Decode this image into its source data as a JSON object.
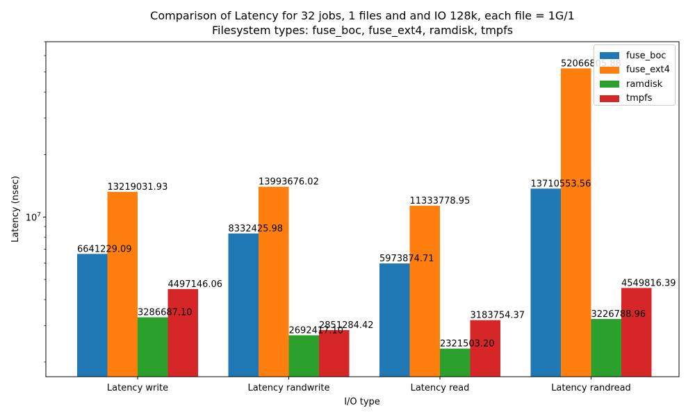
{
  "chart_data": {
    "type": "bar",
    "title": "Comparison of Latency for 32 jobs, 1 files and  and IO 128k, each file = 1G/1",
    "subtitle": "Filesystem types: fuse_boc, fuse_ext4, ramdisk, tmpfs",
    "xlabel": "I/O type",
    "ylabel": "Latency (nsec)",
    "yscale": "log",
    "ylim": [
      1700000,
      70000000
    ],
    "yticks": [
      {
        "value": 10000000,
        "base": "10",
        "exp": "7"
      }
    ],
    "categories": [
      "Latency write",
      "Latency randwrite",
      "Latency read",
      "Latency randread"
    ],
    "series": [
      {
        "name": "fuse_boc",
        "color": "#1f77b4",
        "values": [
          6641229.09,
          8332425.98,
          5973874.71,
          13710553.56
        ],
        "labels": [
          "6641229.09",
          "8332425.98",
          "5973874.71",
          "13710553.56"
        ]
      },
      {
        "name": "fuse_ext4",
        "color": "#ff7f0e",
        "values": [
          13219031.93,
          13993676.02,
          11333778.95,
          52066805.88
        ],
        "labels": [
          "13219031.93",
          "13993676.02",
          "11333778.95",
          "52066805.88"
        ]
      },
      {
        "name": "ramdisk",
        "color": "#2ca02c",
        "values": [
          3286687.1,
          2692417.1,
          2321503.2,
          3226788.96
        ],
        "labels": [
          "3286687.10",
          "2692417.10",
          "2321503.20",
          "3226788.96"
        ]
      },
      {
        "name": "tmpfs",
        "color": "#d62728",
        "values": [
          4497146.06,
          2851284.42,
          3183754.37,
          4549816.39
        ],
        "labels": [
          "4497146.06",
          "2851284.42",
          "3183754.37",
          "4549816.39"
        ]
      }
    ],
    "grid": false,
    "legend_position": "top-right"
  }
}
